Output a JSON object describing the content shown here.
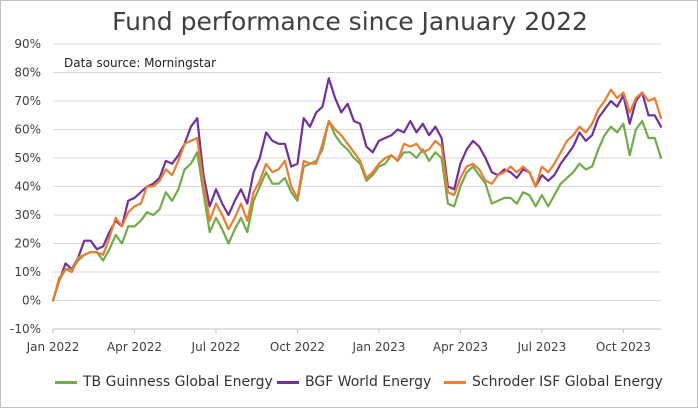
{
  "chart_data": {
    "type": "line",
    "title": "Fund performance since January 2022",
    "subtitle": "Data source: Morningstar",
    "xlabel": "",
    "ylabel": "",
    "ylim": [
      -10,
      90
    ],
    "y_ticks": [
      -10,
      0,
      10,
      20,
      30,
      40,
      50,
      60,
      70,
      80,
      90
    ],
    "y_tick_labels": [
      "-10%",
      "0%",
      "10%",
      "20%",
      "30%",
      "40%",
      "50%",
      "60%",
      "70%",
      "80%",
      "90%"
    ],
    "x_tick_labels": [
      "Jan 2022",
      "Apr 2022",
      "Jul 2022",
      "Oct 2022",
      "Jan 2023",
      "Apr 2023",
      "Jul 2023",
      "Oct 2023"
    ],
    "x_frequency": "weekly",
    "grid": true,
    "legend_position": "bottom",
    "series": [
      {
        "name": "TB Guinness Global Energy",
        "color": "#70ad47",
        "values": [
          0,
          7,
          11,
          11,
          14,
          16,
          17,
          17,
          14,
          18,
          23,
          20,
          26,
          26,
          28,
          31,
          30,
          32,
          38,
          35,
          39,
          46,
          48,
          52,
          38,
          24,
          29,
          25,
          20,
          25,
          29,
          24,
          35,
          40,
          45,
          41,
          41,
          43,
          38,
          35,
          47,
          48,
          49,
          53,
          63,
          58,
          55,
          53,
          50,
          48,
          42,
          44,
          47,
          48,
          51,
          49,
          52,
          52,
          50,
          53,
          49,
          52,
          50,
          34,
          33,
          40,
          45,
          47,
          44,
          41,
          34,
          35,
          36,
          36,
          34,
          38,
          37,
          33,
          37,
          33,
          37,
          41,
          43,
          45,
          48,
          46,
          47,
          53,
          58,
          61,
          59,
          62,
          51,
          60,
          63,
          57,
          57,
          50
        ]
      },
      {
        "name": "BGF World Energy",
        "color": "#7030a0",
        "values": [
          0,
          7,
          13,
          11,
          15,
          21,
          21,
          18,
          19,
          24,
          28,
          26,
          35,
          36,
          38,
          40,
          41,
          43,
          49,
          48,
          51,
          55,
          61,
          64,
          44,
          33,
          39,
          34,
          30,
          35,
          39,
          34,
          45,
          50,
          59,
          56,
          55,
          55,
          47,
          48,
          64,
          61,
          66,
          68,
          78,
          71,
          66,
          69,
          63,
          62,
          54,
          52,
          56,
          57,
          58,
          60,
          59,
          63,
          59,
          62,
          58,
          61,
          57,
          40,
          39,
          48,
          53,
          56,
          54,
          50,
          45,
          44,
          46,
          45,
          43,
          46,
          45,
          40,
          44,
          42,
          44,
          48,
          51,
          54,
          59,
          56,
          58,
          64,
          67,
          70,
          68,
          72,
          62,
          70,
          73,
          65,
          65,
          61
        ]
      },
      {
        "name": "Schroder ISF Global Energy",
        "color": "#ed7d31",
        "values": [
          0,
          8,
          11,
          10,
          15,
          16,
          17,
          17,
          16,
          22,
          29,
          26,
          31,
          33,
          34,
          40,
          40,
          42,
          46,
          44,
          49,
          55,
          56,
          57,
          41,
          28,
          34,
          30,
          25,
          29,
          34,
          28,
          38,
          42,
          48,
          45,
          46,
          49,
          40,
          36,
          49,
          48,
          48,
          55,
          63,
          60,
          58,
          55,
          52,
          49,
          43,
          45,
          48,
          50,
          51,
          49,
          55,
          54,
          55,
          52,
          53,
          56,
          54,
          38,
          37,
          43,
          47,
          48,
          46,
          42,
          41,
          44,
          45,
          47,
          45,
          47,
          45,
          40,
          47,
          45,
          48,
          52,
          56,
          58,
          61,
          59,
          62,
          67,
          70,
          74,
          71,
          73,
          66,
          71,
          73,
          70,
          71,
          64
        ]
      }
    ]
  }
}
